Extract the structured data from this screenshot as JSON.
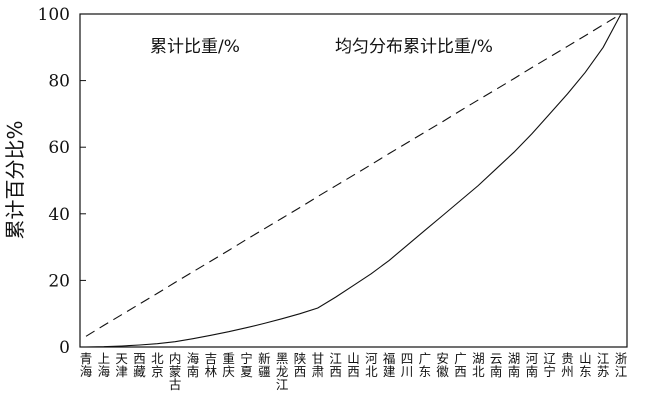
{
  "chart_data": {
    "type": "line",
    "ylabel": "累计百分比%",
    "ylim": [
      0,
      100
    ],
    "yticks": [
      0,
      20,
      40,
      60,
      80,
      100
    ],
    "grid": false,
    "legend_position": "top",
    "categories": [
      "青海",
      "上海",
      "天津",
      "西藏",
      "北京",
      "内蒙古",
      "海南",
      "吉林",
      "重庆",
      "宁夏",
      "新疆",
      "黑龙江",
      "陕西",
      "甘肃",
      "江西",
      "山西",
      "河北",
      "福建",
      "四川",
      "广东",
      "安徽",
      "广西",
      "湖北",
      "云南",
      "湖南",
      "河南",
      "辽宁",
      "贵州",
      "山东",
      "江苏",
      "浙江"
    ],
    "series": [
      {
        "name": "累计比重/%",
        "style": "solid",
        "color": "#111111",
        "values": [
          0.0,
          0.1,
          0.3,
          0.6,
          1.0,
          1.6,
          2.5,
          3.5,
          4.6,
          5.8,
          7.1,
          8.5,
          10.0,
          11.7,
          15.0,
          18.5,
          22.0,
          26.0,
          30.5,
          35.0,
          39.5,
          44.0,
          48.5,
          53.5,
          58.5,
          64.0,
          70.0,
          76.0,
          82.5,
          90.0,
          100.0
        ]
      },
      {
        "name": "均匀分布累计比重/%",
        "style": "dashed",
        "color": "#111111",
        "values": [
          3.2,
          6.5,
          9.7,
          12.9,
          16.1,
          19.4,
          22.6,
          25.8,
          29.0,
          32.3,
          35.5,
          38.7,
          41.9,
          45.2,
          48.4,
          51.6,
          54.8,
          58.1,
          61.3,
          64.5,
          67.7,
          71.0,
          74.2,
          77.4,
          80.6,
          83.9,
          87.1,
          90.3,
          93.5,
          96.8,
          100.0
        ]
      }
    ]
  }
}
